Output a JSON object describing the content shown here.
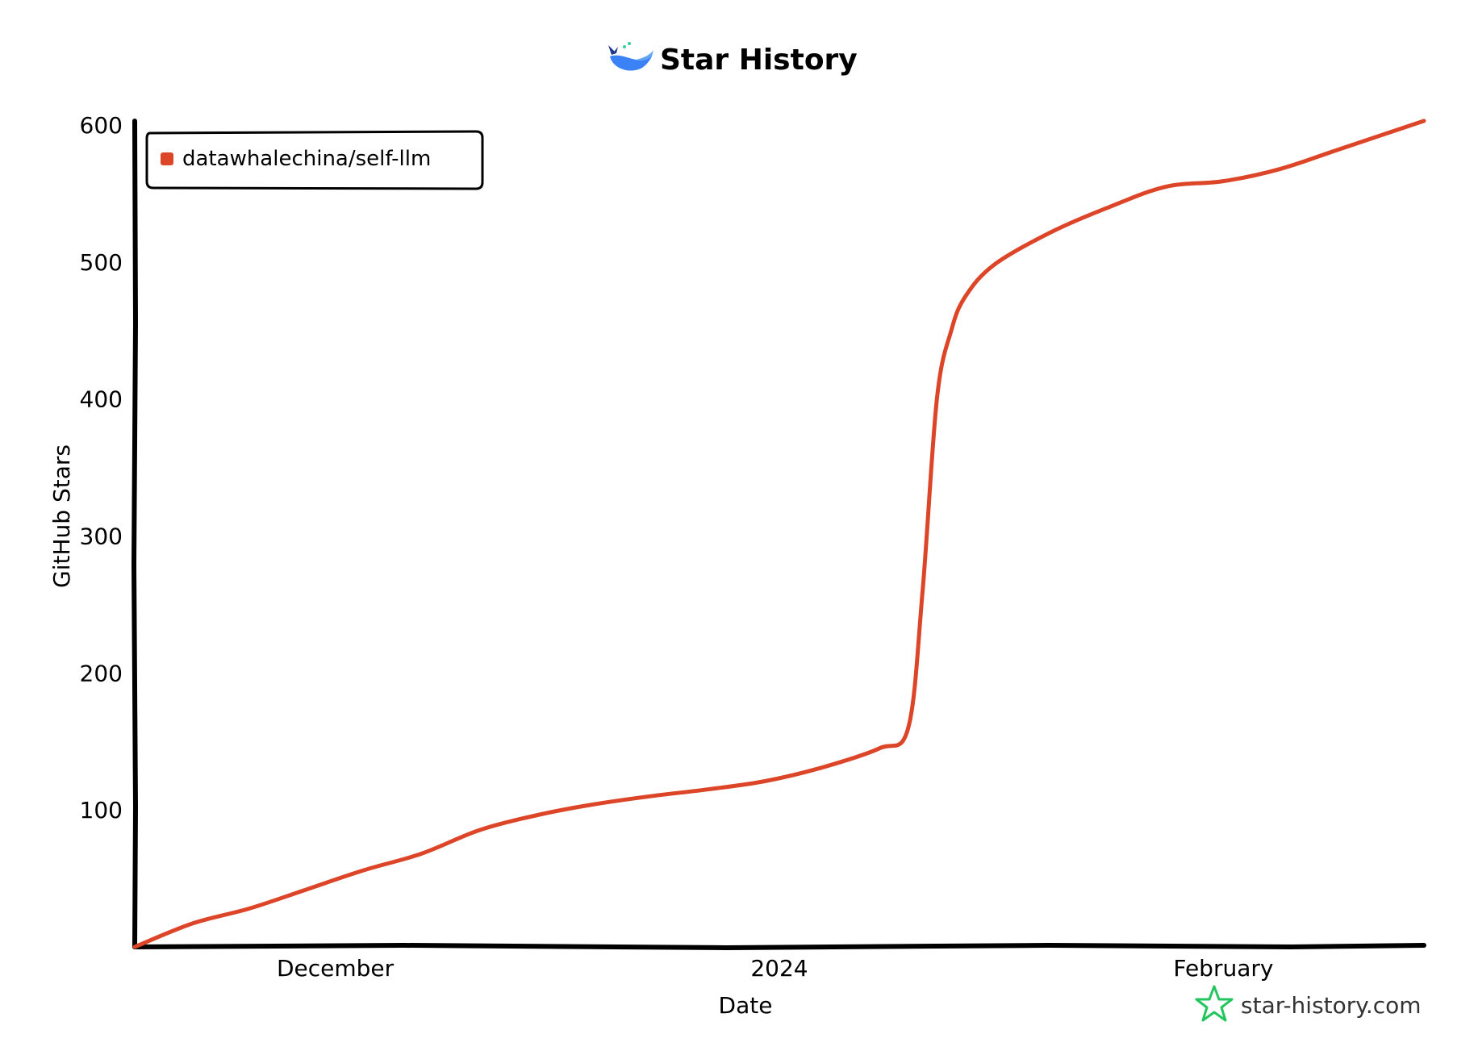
{
  "chart_data": {
    "type": "line",
    "title": "Star History",
    "xlabel": "Date",
    "ylabel": "GitHub Stars",
    "x_tick_labels": [
      "December",
      "2024",
      "February"
    ],
    "y_ticks": [
      100,
      200,
      300,
      400,
      500,
      600
    ],
    "ylim": [
      0,
      600
    ],
    "xlim": [
      "2023-11-17",
      "2024-02-15"
    ],
    "grid": false,
    "legend_position": "top-left",
    "series": [
      {
        "name": "datawhalechina/self-llm",
        "color": "#dd4528",
        "x": [
          "2023-11-17",
          "2023-11-21",
          "2023-11-25",
          "2023-11-29",
          "2023-12-03",
          "2023-12-07",
          "2023-12-11",
          "2023-12-15",
          "2023-12-19",
          "2023-12-23",
          "2023-12-27",
          "2023-12-31",
          "2024-01-04",
          "2024-01-08",
          "2024-01-10",
          "2024-01-11",
          "2024-01-12",
          "2024-01-13",
          "2024-01-14",
          "2024-01-16",
          "2024-01-20",
          "2024-01-24",
          "2024-01-28",
          "2024-02-01",
          "2024-02-05",
          "2024-02-09",
          "2024-02-15"
        ],
        "y": [
          0,
          17,
          28,
          42,
          56,
          68,
          85,
          96,
          104,
          110,
          115,
          121,
          131,
          145,
          160,
          260,
          400,
          450,
          475,
          498,
          522,
          540,
          555,
          559,
          568,
          582,
          603
        ]
      }
    ]
  },
  "watermark": {
    "text": "star-history.com",
    "icon": "star-icon",
    "color": "#22c55e"
  },
  "logo": {
    "icon": "whale-icon",
    "color": "#3b82f6"
  }
}
